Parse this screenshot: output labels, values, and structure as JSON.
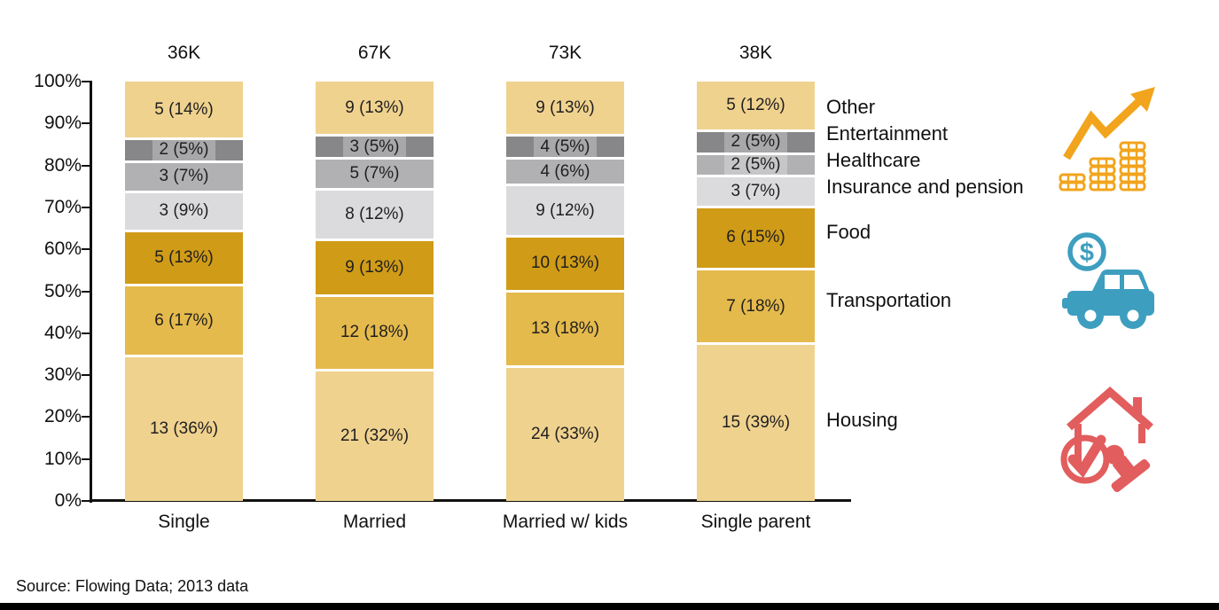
{
  "chart_data": {
    "type": "bar",
    "subtype": "100-percent-stacked-column",
    "title": "",
    "xlabel": "",
    "ylabel": "",
    "ylim": [
      0,
      100
    ],
    "grid": false,
    "legend_position": "right",
    "categories": [
      "Single",
      "Married",
      "Married w/ kids",
      "Single parent"
    ],
    "column_totals": [
      "36K",
      "67K",
      "73K",
      "38K"
    ],
    "y_ticks": [
      "0%",
      "10%",
      "20%",
      "30%",
      "40%",
      "50%",
      "60%",
      "70%",
      "80%",
      "90%",
      "100%"
    ],
    "series": [
      {
        "name": "Other",
        "color": "#F0D28F",
        "values_k": [
          5,
          9,
          9,
          5
        ],
        "percents": [
          14,
          13,
          13,
          12
        ],
        "labels": [
          "5 (14%)",
          "9 (13%)",
          "9 (13%)",
          "5 (12%)"
        ]
      },
      {
        "name": "Entertainment",
        "color": "#87878A",
        "values_k": [
          2,
          3,
          4,
          2
        ],
        "percents": [
          5,
          5,
          5,
          5
        ],
        "labels": [
          "2 (5%)",
          "3 (5%)",
          "4 (5%)",
          "2 (5%)"
        ]
      },
      {
        "name": "Healthcare",
        "color": "#B1B1B3",
        "values_k": [
          3,
          5,
          4,
          2
        ],
        "percents": [
          7,
          7,
          6,
          5
        ],
        "labels": [
          "3 (7%)",
          "5 (7%)",
          "4 (6%)",
          "2 (5%)"
        ]
      },
      {
        "name": "Insurance and pension",
        "color": "#DBDBDD",
        "values_k": [
          3,
          8,
          9,
          3
        ],
        "percents": [
          9,
          12,
          12,
          7
        ],
        "labels": [
          "3 (9%)",
          "8 (12%)",
          "9 (12%)",
          "3 (7%)"
        ]
      },
      {
        "name": "Food",
        "color": "#D09B17",
        "values_k": [
          5,
          9,
          10,
          6
        ],
        "percents": [
          13,
          13,
          13,
          15
        ],
        "labels": [
          "5 (13%)",
          "9 (13%)",
          "10 (13%)",
          "6 (15%)"
        ]
      },
      {
        "name": "Transportation",
        "color": "#E5BA4C",
        "values_k": [
          6,
          12,
          13,
          7
        ],
        "percents": [
          17,
          18,
          18,
          18
        ],
        "labels": [
          "6 (17%)",
          "12 (18%)",
          "13 (18%)",
          "7 (18%)"
        ]
      },
      {
        "name": "Housing",
        "color": "#F0D28F",
        "values_k": [
          13,
          21,
          24,
          15
        ],
        "percents": [
          36,
          32,
          33,
          39
        ],
        "labels": [
          "13 (36%)",
          "21 (32%)",
          "24 (33%)",
          "15 (39%)"
        ]
      }
    ]
  },
  "icons": {
    "money_growth_color": "#F2A41D",
    "car_expense_color": "#3D9EC0",
    "house_approved_color": "#E25D5D"
  },
  "footer": {
    "source_note": "Source: Flowing Data; 2013 data"
  }
}
